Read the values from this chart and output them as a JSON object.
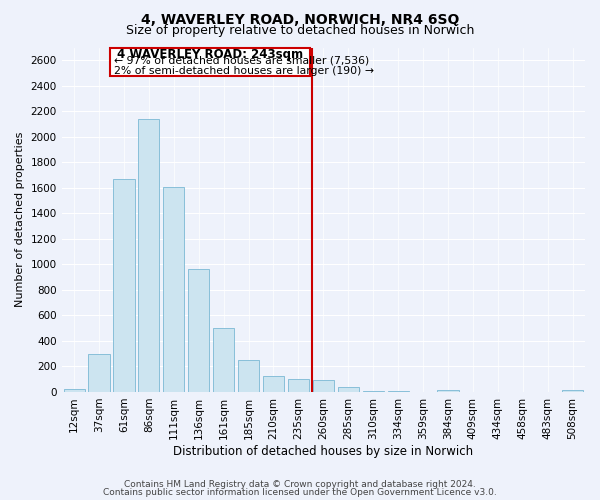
{
  "title": "4, WAVERLEY ROAD, NORWICH, NR4 6SQ",
  "subtitle": "Size of property relative to detached houses in Norwich",
  "xlabel": "Distribution of detached houses by size in Norwich",
  "ylabel": "Number of detached properties",
  "bar_labels": [
    "12sqm",
    "37sqm",
    "61sqm",
    "86sqm",
    "111sqm",
    "136sqm",
    "161sqm",
    "185sqm",
    "210sqm",
    "235sqm",
    "260sqm",
    "285sqm",
    "310sqm",
    "334sqm",
    "359sqm",
    "384sqm",
    "409sqm",
    "434sqm",
    "458sqm",
    "483sqm",
    "508sqm"
  ],
  "bar_values": [
    20,
    300,
    1670,
    2140,
    1610,
    960,
    505,
    250,
    125,
    100,
    90,
    35,
    10,
    5,
    3,
    15,
    2,
    1,
    1,
    0,
    15
  ],
  "bar_color": "#cce4f0",
  "bar_edge_color": "#7ab8d4",
  "vline_x_index": 9.55,
  "annotation_title": "4 WAVERLEY ROAD: 243sqm",
  "annotation_smaller": "← 97% of detached houses are smaller (7,536)",
  "annotation_larger": "2% of semi-detached houses are larger (190) →",
  "vline_color": "#cc0000",
  "annotation_box_facecolor": "#ffffff",
  "annotation_box_edgecolor": "#cc0000",
  "ylim": [
    0,
    2700
  ],
  "yticks": [
    0,
    200,
    400,
    600,
    800,
    1000,
    1200,
    1400,
    1600,
    1800,
    2000,
    2200,
    2400,
    2600
  ],
  "footer1": "Contains HM Land Registry data © Crown copyright and database right 2024.",
  "footer2": "Contains public sector information licensed under the Open Government Licence v3.0.",
  "bg_color": "#eef2fb",
  "grid_color": "#ffffff",
  "title_fontsize": 10,
  "subtitle_fontsize": 9,
  "ylabel_fontsize": 8,
  "xlabel_fontsize": 8.5,
  "tick_fontsize": 7.5,
  "ytick_fontsize": 7.5,
  "footer_fontsize": 6.5
}
